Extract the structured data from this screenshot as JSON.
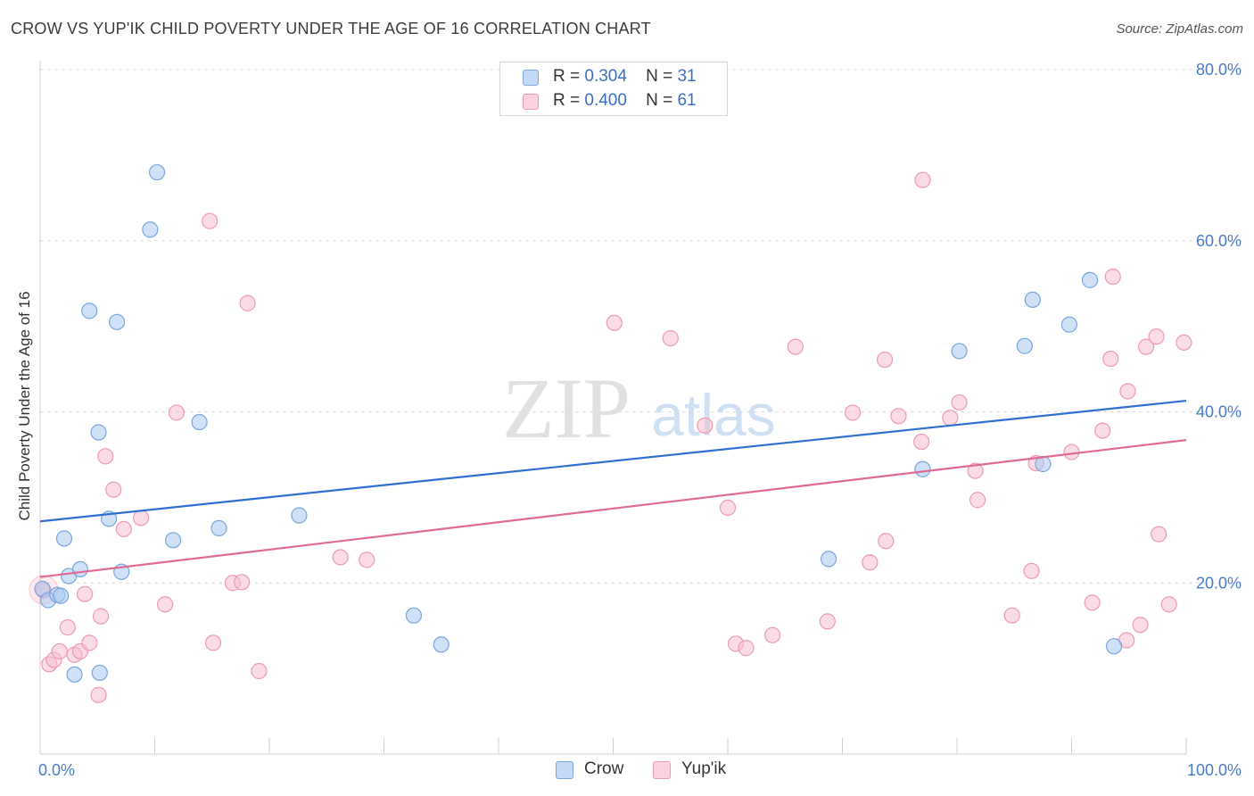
{
  "header": {
    "title": "CROW VS YUP'IK CHILD POVERTY UNDER THE AGE OF 16 CORRELATION CHART",
    "source": "Source: ZipAtlas.com"
  },
  "watermark": {
    "zip": "ZIP",
    "atlas": "atlas"
  },
  "legend": {
    "crow": {
      "r_label": "R =",
      "r_value": "0.304",
      "n_label": "N =",
      "n_value": "31"
    },
    "yupik": {
      "r_label": "R =",
      "r_value": "0.400",
      "n_label": "N =",
      "n_value": "61"
    }
  },
  "bottom_legend": {
    "crow": "Crow",
    "yupik": "Yup'ik"
  },
  "colors": {
    "crow_fill": "#a9c8f0",
    "crow_stroke": "#7aa6df",
    "crow_line": "#2e6fcf",
    "yupik_fill": "#f7bfd0",
    "yupik_stroke": "#ee9ab5",
    "yupik_line": "#e06a95",
    "tick_text": "#4a7cc9"
  },
  "chart_data": {
    "type": "scatter",
    "title": "CROW VS YUP'IK CHILD POVERTY UNDER THE AGE OF 16 CORRELATION CHART",
    "xlabel": "",
    "ylabel": "Child Poverty Under the Age of 16",
    "xlim": [
      0,
      100
    ],
    "ylim": [
      0,
      80
    ],
    "x_tick_labels": [
      "0.0%",
      "100.0%"
    ],
    "y_ticks": [
      20,
      40,
      60,
      80
    ],
    "y_tick_labels": [
      "20.0%",
      "40.0%",
      "60.0%",
      "80.0%"
    ],
    "grid": true,
    "legend_position": "top-center",
    "series": [
      {
        "name": "Crow",
        "points": [
          [
            0.2,
            19.3
          ],
          [
            0.7,
            18.0
          ],
          [
            1.5,
            18.6
          ],
          [
            1.8,
            18.5
          ],
          [
            2.1,
            25.2
          ],
          [
            2.5,
            20.8
          ],
          [
            3.0,
            9.3
          ],
          [
            3.5,
            21.6
          ],
          [
            4.3,
            51.8
          ],
          [
            5.1,
            37.6
          ],
          [
            5.2,
            9.5
          ],
          [
            6.0,
            27.5
          ],
          [
            6.7,
            50.5
          ],
          [
            7.1,
            21.3
          ],
          [
            9.6,
            61.3
          ],
          [
            10.2,
            68.0
          ],
          [
            11.6,
            25.0
          ],
          [
            13.9,
            38.8
          ],
          [
            15.6,
            26.4
          ],
          [
            22.6,
            27.9
          ],
          [
            32.6,
            16.2
          ],
          [
            35.0,
            12.8
          ],
          [
            68.8,
            22.8
          ],
          [
            77.0,
            33.3
          ],
          [
            80.2,
            47.1
          ],
          [
            85.9,
            47.7
          ],
          [
            86.6,
            53.1
          ],
          [
            87.5,
            33.9
          ],
          [
            89.8,
            50.2
          ],
          [
            91.6,
            55.4
          ],
          [
            93.7,
            12.6
          ]
        ],
        "trend": {
          "x": [
            0,
            100
          ],
          "y": [
            27.2,
            41.3
          ]
        }
      },
      {
        "name": "Yup'ik",
        "points": [
          [
            0.3,
            19.1
          ],
          [
            0.8,
            10.5
          ],
          [
            1.2,
            11.0
          ],
          [
            1.7,
            12.0
          ],
          [
            2.4,
            14.8
          ],
          [
            3.0,
            11.6
          ],
          [
            3.5,
            12.0
          ],
          [
            3.9,
            18.7
          ],
          [
            4.3,
            13.0
          ],
          [
            5.1,
            6.9
          ],
          [
            5.3,
            16.1
          ],
          [
            5.7,
            34.8
          ],
          [
            6.4,
            30.9
          ],
          [
            7.3,
            26.3
          ],
          [
            8.8,
            27.6
          ],
          [
            10.9,
            17.5
          ],
          [
            11.9,
            39.9
          ],
          [
            14.8,
            62.3
          ],
          [
            15.1,
            13.0
          ],
          [
            16.8,
            20.0
          ],
          [
            17.6,
            20.1
          ],
          [
            18.1,
            52.7
          ],
          [
            19.1,
            9.7
          ],
          [
            26.2,
            23.0
          ],
          [
            28.5,
            22.7
          ],
          [
            50.1,
            50.4
          ],
          [
            55.0,
            48.6
          ],
          [
            58.0,
            38.4
          ],
          [
            60.0,
            28.8
          ],
          [
            60.7,
            12.9
          ],
          [
            61.6,
            12.4
          ],
          [
            63.9,
            13.9
          ],
          [
            65.9,
            47.6
          ],
          [
            68.7,
            15.5
          ],
          [
            70.9,
            39.9
          ],
          [
            72.4,
            22.4
          ],
          [
            73.7,
            46.1
          ],
          [
            73.8,
            24.9
          ],
          [
            74.9,
            39.5
          ],
          [
            76.9,
            36.5
          ],
          [
            77.0,
            67.1
          ],
          [
            79.4,
            39.3
          ],
          [
            80.2,
            41.1
          ],
          [
            81.6,
            33.1
          ],
          [
            81.8,
            29.7
          ],
          [
            84.8,
            16.2
          ],
          [
            86.5,
            21.4
          ],
          [
            86.9,
            34.0
          ],
          [
            90.0,
            35.3
          ],
          [
            91.8,
            17.7
          ],
          [
            92.7,
            37.8
          ],
          [
            93.4,
            46.2
          ],
          [
            93.6,
            55.8
          ],
          [
            94.8,
            13.3
          ],
          [
            94.9,
            42.4
          ],
          [
            96.0,
            15.1
          ],
          [
            96.5,
            47.6
          ],
          [
            97.4,
            48.8
          ],
          [
            97.6,
            25.7
          ],
          [
            98.5,
            17.5
          ],
          [
            99.8,
            48.1
          ]
        ],
        "trend": {
          "x": [
            0,
            100
          ],
          "y": [
            20.7,
            36.7
          ]
        }
      }
    ]
  }
}
